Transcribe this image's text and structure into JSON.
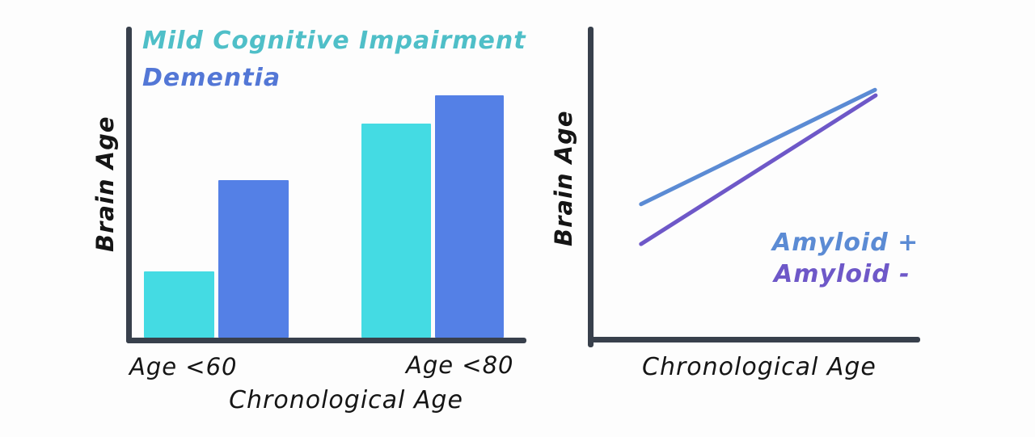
{
  "chart_data": [
    {
      "type": "bar",
      "title": "",
      "categories": [
        "Age <60",
        "Age <80"
      ],
      "series": [
        {
          "name": "Mild Cognitive Impairment",
          "values": [
            21.3,
            68.8
          ],
          "bar_color": "#44dbe3",
          "label_color": "#4fbfc8"
        },
        {
          "name": "Dementia",
          "values": [
            50.6,
            77.9
          ],
          "bar_color": "#5480e6",
          "label_color": "#5377d6"
        }
      ],
      "xlabel": "Chronological Age",
      "ylabel": "Brain Age",
      "ylim": [
        0,
        100
      ],
      "y_units": "relative (no ticks shown)",
      "grid": false,
      "legend_position": "top-left",
      "axis_color": "#38404c",
      "text_color": "#151515"
    },
    {
      "type": "line",
      "title": "",
      "series": [
        {
          "name": "Amyloid +",
          "x": [
            16.0,
            86.4
          ],
          "y": [
            42.9,
            79.7
          ],
          "color": "#5b8bd4"
        },
        {
          "name": "Amyloid -",
          "x": [
            16.0,
            86.6
          ],
          "y": [
            30.1,
            77.9
          ],
          "color": "#6e58c8"
        }
      ],
      "xlabel": "Chronological Age",
      "ylabel": "Brain Age",
      "xlim": [
        0,
        100
      ],
      "ylim": [
        0,
        100
      ],
      "x_units": "relative (no ticks shown)",
      "grid": false,
      "legend_position": "center-right",
      "axis_color": "#38404c",
      "text_color": "#151515"
    }
  ],
  "layout_note": "two hand-drawn style panels: grouped bar chart (left), two-line chart (right)"
}
